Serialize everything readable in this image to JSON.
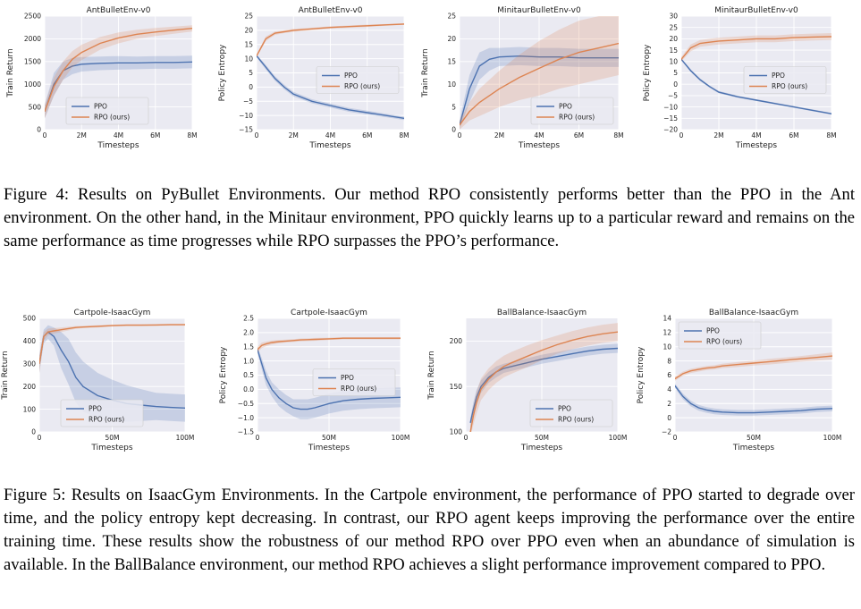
{
  "figure4": {
    "caption": "Figure 4: Results on PyBullet Environments. Our method RPO consistently performs better than the PPO in the Ant environment. On the other hand, in the Minitaur environment, PPO quickly learns up to a particular reward and remains on the same performance as time progresses while RPO surpasses the PPO’s performance."
  },
  "figure5": {
    "caption": "Figure 5: Results on IsaacGym Environments. In the Cartpole environment, the performance of PPO started to degrade over time, and the policy entropy kept decreasing. In contrast, our RPO agent keeps improving the performance over the entire training time. These results show the robustness of our method RPO over PPO even when an abundance of simulation is available. In the BallBalance environment, our method RPO achieves a slight performance improvement compared to PPO."
  },
  "colors": {
    "ppo": "#4c72b0",
    "rpo": "#dd8452",
    "background": "#eaeaf2",
    "grid": "#ffffff"
  },
  "chart_data": [
    {
      "type": "line",
      "title": "AntBulletEnv-v0",
      "xlabel": "Timesteps",
      "ylabel": "Train Return",
      "xlim": [
        0,
        8
      ],
      "ylim": [
        0,
        2500
      ],
      "xticks": [
        0,
        2,
        4,
        6,
        8
      ],
      "xtick_labels": [
        "0",
        "2M",
        "4M",
        "6M",
        "8M"
      ],
      "yticks": [
        0,
        500,
        1000,
        1500,
        2000,
        2500
      ],
      "ytick_labels": [
        "0",
        "500",
        "1000",
        "1500",
        "2000",
        "2500"
      ],
      "legend": "lower-left",
      "grid": true,
      "series": [
        {
          "name": "PPO",
          "x": [
            0,
            0.5,
            1,
            1.5,
            2,
            3,
            4,
            5,
            6,
            7,
            8
          ],
          "y": [
            400,
            1000,
            1300,
            1400,
            1440,
            1460,
            1470,
            1470,
            1480,
            1480,
            1490
          ],
          "band": [
            150,
            250,
            200,
            180,
            160,
            150,
            150,
            140,
            140,
            140,
            140
          ]
        },
        {
          "name": "RPO (ours)",
          "x": [
            0,
            0.5,
            1,
            1.5,
            2,
            3,
            4,
            5,
            6,
            7,
            8
          ],
          "y": [
            400,
            950,
            1300,
            1550,
            1700,
            1900,
            2020,
            2100,
            2150,
            2190,
            2230
          ],
          "band": [
            150,
            200,
            200,
            180,
            170,
            140,
            120,
            100,
            90,
            80,
            70
          ]
        }
      ]
    },
    {
      "type": "line",
      "title": "AntBulletEnv-v0",
      "xlabel": "Timesteps",
      "ylabel": "Policy Entropy",
      "xlim": [
        0,
        8
      ],
      "ylim": [
        -15,
        25
      ],
      "xticks": [
        0,
        2,
        4,
        6,
        8
      ],
      "xtick_labels": [
        "0",
        "2M",
        "4M",
        "6M",
        "8M"
      ],
      "yticks": [
        -15,
        -10,
        -5,
        0,
        5,
        10,
        15,
        20,
        25
      ],
      "ytick_labels": [
        "−15",
        "−10",
        "−5",
        "0",
        "5",
        "10",
        "15",
        "20",
        "25"
      ],
      "legend": "center-right",
      "grid": true,
      "series": [
        {
          "name": "PPO",
          "x": [
            0,
            0.5,
            1,
            1.5,
            2,
            3,
            4,
            5,
            6,
            7,
            8
          ],
          "y": [
            11,
            7,
            3,
            0,
            -2.5,
            -5,
            -6.5,
            -8,
            -9,
            -10,
            -11
          ],
          "band": [
            0.5,
            0.8,
            0.8,
            0.8,
            0.8,
            0.7,
            0.7,
            0.7,
            0.7,
            0.6,
            0.6
          ]
        },
        {
          "name": "RPO (ours)",
          "x": [
            0,
            0.5,
            1,
            1.5,
            2,
            3,
            4,
            5,
            6,
            7,
            8
          ],
          "y": [
            11,
            17,
            19,
            19.5,
            20,
            20.5,
            21,
            21.3,
            21.6,
            21.9,
            22.2
          ],
          "band": [
            0.5,
            0.8,
            0.6,
            0.5,
            0.5,
            0.4,
            0.4,
            0.4,
            0.4,
            0.3,
            0.3
          ]
        }
      ]
    },
    {
      "type": "line",
      "title": "MinitaurBulletEnv-v0",
      "xlabel": "Timesteps",
      "ylabel": "Train Return",
      "xlim": [
        0,
        8
      ],
      "ylim": [
        0,
        25
      ],
      "xticks": [
        0,
        2,
        4,
        6,
        8
      ],
      "xtick_labels": [
        "0",
        "2M",
        "4M",
        "6M",
        "8M"
      ],
      "yticks": [
        0,
        5,
        10,
        15,
        20,
        25
      ],
      "ytick_labels": [
        "0",
        "5",
        "10",
        "15",
        "20",
        "25"
      ],
      "legend": "lower-right",
      "grid": true,
      "series": [
        {
          "name": "PPO",
          "x": [
            0,
            0.5,
            1,
            1.5,
            2,
            3,
            4,
            5,
            6,
            7,
            8
          ],
          "y": [
            1,
            9,
            14,
            15.5,
            16,
            16.2,
            16,
            16,
            15.8,
            15.8,
            15.8
          ],
          "band": [
            1,
            3,
            3,
            2.5,
            2,
            2,
            2,
            2,
            2,
            2,
            2
          ]
        },
        {
          "name": "RPO (ours)",
          "x": [
            0,
            0.5,
            1,
            1.5,
            2,
            3,
            4,
            5,
            6,
            7,
            8
          ],
          "y": [
            1,
            4,
            6,
            7.5,
            9,
            11.5,
            13.5,
            15.5,
            17,
            18,
            19
          ],
          "band": [
            1,
            2,
            3,
            3.5,
            4,
            5,
            6,
            6.5,
            7,
            7,
            7
          ]
        }
      ]
    },
    {
      "type": "line",
      "title": "MinitaurBulletEnv-v0",
      "xlabel": "Timesteps",
      "ylabel": "Policy Entropy",
      "xlim": [
        0,
        8
      ],
      "ylim": [
        -20,
        30
      ],
      "xticks": [
        0,
        2,
        4,
        6,
        8
      ],
      "xtick_labels": [
        "0",
        "2M",
        "4M",
        "6M",
        "8M"
      ],
      "yticks": [
        -20,
        -15,
        -10,
        -5,
        0,
        5,
        10,
        15,
        20,
        25,
        30
      ],
      "ytick_labels": [
        "−20",
        "−15",
        "−10",
        "−5",
        "0",
        "5",
        "10",
        "15",
        "20",
        "25",
        "30"
      ],
      "legend": "center-right",
      "grid": true,
      "series": [
        {
          "name": "PPO",
          "x": [
            0,
            0.5,
            1,
            1.5,
            2,
            3,
            4,
            5,
            6,
            7,
            8
          ],
          "y": [
            11,
            6,
            2,
            -1,
            -3.5,
            -5.5,
            -7,
            -8.5,
            -10,
            -11.5,
            -13
          ],
          "band": [
            0.5,
            0.6,
            0.6,
            0.5,
            0.5,
            0.5,
            0.4,
            0.4,
            0.4,
            0.4,
            0.4
          ]
        },
        {
          "name": "RPO (ours)",
          "x": [
            0,
            0.5,
            1,
            1.5,
            2,
            3,
            4,
            5,
            6,
            7,
            8
          ],
          "y": [
            11,
            16,
            18,
            18.5,
            19,
            19.5,
            20,
            20,
            20.5,
            20.8,
            21
          ],
          "band": [
            1,
            1.5,
            1.5,
            1.5,
            1.5,
            1.5,
            1.5,
            1.5,
            1.5,
            1.5,
            1.5
          ]
        }
      ]
    },
    {
      "type": "line",
      "title": "Cartpole-IsaacGym",
      "xlabel": "Timesteps",
      "ylabel": "Train Return",
      "xlim": [
        0,
        100
      ],
      "ylim": [
        0,
        500
      ],
      "xticks": [
        0,
        50,
        100
      ],
      "xtick_labels": [
        "0",
        "50M",
        "100M"
      ],
      "yticks": [
        0,
        100,
        200,
        300,
        400,
        500
      ],
      "ytick_labels": [
        "0",
        "100",
        "200",
        "300",
        "400",
        "500"
      ],
      "legend": "lower-left",
      "grid": true,
      "series": [
        {
          "name": "PPO",
          "x": [
            0,
            3,
            6,
            10,
            15,
            20,
            25,
            30,
            40,
            50,
            60,
            70,
            80,
            90,
            100
          ],
          "y": [
            300,
            420,
            440,
            420,
            360,
            310,
            240,
            200,
            160,
            140,
            125,
            118,
            112,
            108,
            105
          ],
          "band": [
            40,
            30,
            30,
            40,
            80,
            100,
            110,
            110,
            100,
            90,
            80,
            70,
            60,
            60,
            60
          ]
        },
        {
          "name": "RPO (ours)",
          "x": [
            0,
            3,
            6,
            10,
            15,
            20,
            25,
            30,
            40,
            50,
            60,
            70,
            80,
            90,
            100
          ],
          "y": [
            300,
            420,
            440,
            445,
            450,
            455,
            460,
            462,
            465,
            468,
            470,
            470,
            471,
            472,
            472
          ],
          "band": [
            40,
            20,
            15,
            12,
            10,
            8,
            6,
            5,
            5,
            4,
            4,
            4,
            4,
            4,
            4
          ]
        }
      ]
    },
    {
      "type": "line",
      "title": "Cartpole-IsaacGym",
      "xlabel": "Timesteps",
      "ylabel": "Policy Entropy",
      "xlim": [
        0,
        100
      ],
      "ylim": [
        -1.5,
        2.5
      ],
      "xticks": [
        0,
        50,
        100
      ],
      "xtick_labels": [
        "0",
        "50M",
        "100M"
      ],
      "yticks": [
        -1.5,
        -1.0,
        -0.5,
        0.0,
        0.5,
        1.0,
        1.5,
        2.0,
        2.5
      ],
      "ytick_labels": [
        "−1.5",
        "−1.0",
        "−0.5",
        "0.0",
        "0.5",
        "1.0",
        "1.5",
        "2.0",
        "2.5"
      ],
      "legend": "center-right",
      "grid": true,
      "series": [
        {
          "name": "PPO",
          "x": [
            0,
            3,
            6,
            10,
            15,
            20,
            25,
            30,
            35,
            40,
            50,
            60,
            70,
            80,
            90,
            100
          ],
          "y": [
            1.4,
            0.9,
            0.4,
            0.0,
            -0.3,
            -0.5,
            -0.65,
            -0.7,
            -0.7,
            -0.65,
            -0.5,
            -0.4,
            -0.35,
            -0.32,
            -0.3,
            -0.28
          ],
          "band": [
            0.1,
            0.2,
            0.25,
            0.25,
            0.3,
            0.3,
            0.3,
            0.35,
            0.35,
            0.35,
            0.35,
            0.35,
            0.35,
            0.35,
            0.35,
            0.35
          ]
        },
        {
          "name": "RPO (ours)",
          "x": [
            0,
            3,
            6,
            10,
            15,
            20,
            25,
            30,
            35,
            40,
            50,
            60,
            70,
            80,
            90,
            100
          ],
          "y": [
            1.4,
            1.55,
            1.6,
            1.65,
            1.68,
            1.7,
            1.72,
            1.74,
            1.75,
            1.76,
            1.78,
            1.8,
            1.8,
            1.8,
            1.8,
            1.8
          ],
          "band": [
            0.1,
            0.1,
            0.08,
            0.07,
            0.06,
            0.05,
            0.05,
            0.05,
            0.05,
            0.05,
            0.04,
            0.04,
            0.04,
            0.04,
            0.04,
            0.04
          ]
        }
      ]
    },
    {
      "type": "line",
      "title": "BallBalance-IsaacGym",
      "xlabel": "Timesteps",
      "ylabel": "Train Return",
      "xlim": [
        0,
        100
      ],
      "ylim": [
        100,
        225
      ],
      "xticks": [
        0,
        50,
        100
      ],
      "xtick_labels": [
        "0",
        "50M",
        "100M"
      ],
      "yticks": [
        100,
        150,
        200
      ],
      "ytick_labels": [
        "100",
        "150",
        "200"
      ],
      "legend": "lower-right",
      "grid": true,
      "series": [
        {
          "name": "PPO",
          "x": [
            3,
            5,
            7,
            10,
            15,
            20,
            25,
            30,
            40,
            50,
            60,
            70,
            80,
            90,
            100
          ],
          "y": [
            110,
            125,
            138,
            150,
            160,
            166,
            170,
            172,
            176,
            180,
            183,
            186,
            189,
            191,
            192
          ],
          "band": [
            5,
            8,
            8,
            7,
            6,
            6,
            5,
            5,
            5,
            5,
            5,
            5,
            5,
            5,
            5
          ]
        },
        {
          "name": "RPO (ours)",
          "x": [
            3,
            5,
            7,
            10,
            15,
            20,
            25,
            30,
            40,
            50,
            60,
            70,
            80,
            90,
            100
          ],
          "y": [
            100,
            118,
            132,
            147,
            158,
            166,
            172,
            176,
            183,
            190,
            196,
            201,
            205,
            208,
            210
          ],
          "band": [
            6,
            10,
            12,
            12,
            12,
            12,
            12,
            12,
            12,
            11,
            10,
            10,
            10,
            10,
            10
          ]
        }
      ]
    },
    {
      "type": "line",
      "title": "BallBalance-IsaacGym",
      "xlabel": "Timesteps",
      "ylabel": "Policy Entropy",
      "xlim": [
        0,
        100
      ],
      "ylim": [
        -2,
        14
      ],
      "xticks": [
        0,
        50,
        100
      ],
      "xtick_labels": [
        "0",
        "50M",
        "100M"
      ],
      "yticks": [
        -2,
        0,
        2,
        4,
        6,
        8,
        10,
        12,
        14
      ],
      "ytick_labels": [
        "−2",
        "0",
        "2",
        "4",
        "6",
        "8",
        "10",
        "12",
        "14"
      ],
      "legend": "upper-left",
      "grid": true,
      "series": [
        {
          "name": "PPO",
          "x": [
            0,
            5,
            10,
            15,
            20,
            25,
            30,
            40,
            50,
            60,
            70,
            80,
            90,
            100
          ],
          "y": [
            4.5,
            3,
            2,
            1.4,
            1.1,
            0.9,
            0.8,
            0.7,
            0.7,
            0.8,
            0.9,
            1.0,
            1.2,
            1.3
          ],
          "band": [
            0.3,
            0.4,
            0.4,
            0.4,
            0.4,
            0.4,
            0.4,
            0.4,
            0.4,
            0.4,
            0.4,
            0.4,
            0.4,
            0.4
          ]
        },
        {
          "name": "RPO (ours)",
          "x": [
            0,
            5,
            10,
            15,
            20,
            25,
            30,
            40,
            50,
            60,
            70,
            80,
            90,
            100
          ],
          "y": [
            5.5,
            6.2,
            6.6,
            6.8,
            7.0,
            7.1,
            7.3,
            7.5,
            7.7,
            7.9,
            8.1,
            8.3,
            8.5,
            8.7
          ],
          "band": [
            0.3,
            0.3,
            0.3,
            0.3,
            0.3,
            0.3,
            0.3,
            0.35,
            0.35,
            0.4,
            0.4,
            0.4,
            0.45,
            0.5
          ]
        }
      ]
    }
  ]
}
